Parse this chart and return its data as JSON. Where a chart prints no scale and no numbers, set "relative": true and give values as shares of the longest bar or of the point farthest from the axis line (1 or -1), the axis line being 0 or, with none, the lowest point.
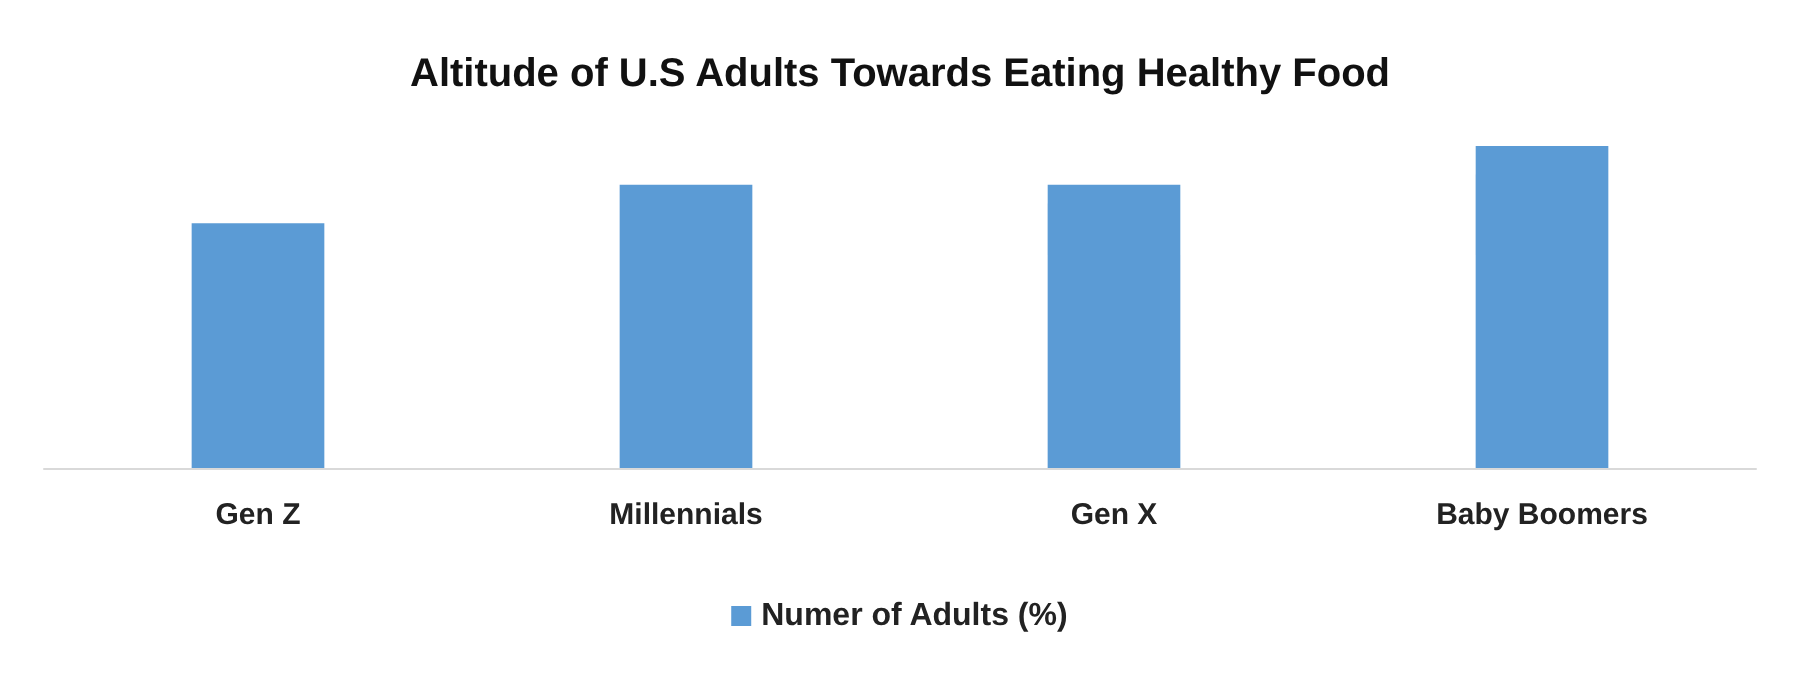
{
  "chart_data": {
    "type": "bar",
    "title": "Altitude of U.S Adults Towards Eating Healthy Food",
    "categories": [
      "Gen Z",
      "Millennials",
      "Gen X",
      "Baby Boomers"
    ],
    "relative": true,
    "series": [
      {
        "name": "Numer of Adults (%)",
        "color": "#5b9bd5",
        "values": [
          0.76,
          0.88,
          0.88,
          1
        ]
      }
    ],
    "legend": "bottom"
  }
}
